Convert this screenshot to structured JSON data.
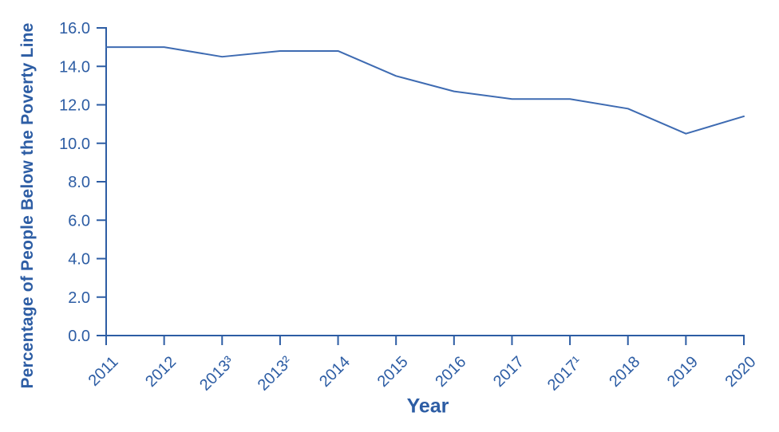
{
  "figure": {
    "y_axis_title": "Percentage of People Below the Poverty Line",
    "x_axis_title": "Year"
  },
  "colors": {
    "text_blue": "#2D5DA4",
    "axis_blue": "#2D5DA4",
    "line_blue": "#3E6BB2",
    "background": "#FFFFFF"
  },
  "chart_data": {
    "type": "line",
    "title": "",
    "xlabel": "Year",
    "ylabel": "Percentage of People Below the Poverty Line",
    "categories": [
      "2011",
      "2012",
      "2013³",
      "2013²",
      "2014",
      "2015",
      "2016",
      "2017",
      "2017¹",
      "2018",
      "2019",
      "2020"
    ],
    "values": [
      15.0,
      15.0,
      14.5,
      14.8,
      14.8,
      13.5,
      12.7,
      12.3,
      12.3,
      11.8,
      10.5,
      11.4
    ],
    "series_name": "Percentage of people below the poverty line",
    "y_ticks": [
      0.0,
      2.0,
      4.0,
      6.0,
      8.0,
      10.0,
      12.0,
      14.0,
      16.0
    ],
    "y_tick_labels": [
      "0.0",
      "2.0",
      "4.0",
      "6.0",
      "8.0",
      "10.0",
      "12.0",
      "14.0",
      "16.0"
    ],
    "ylim": [
      0,
      16
    ],
    "grid": false,
    "legend": "none",
    "x_tick_rotation_deg": -45
  }
}
